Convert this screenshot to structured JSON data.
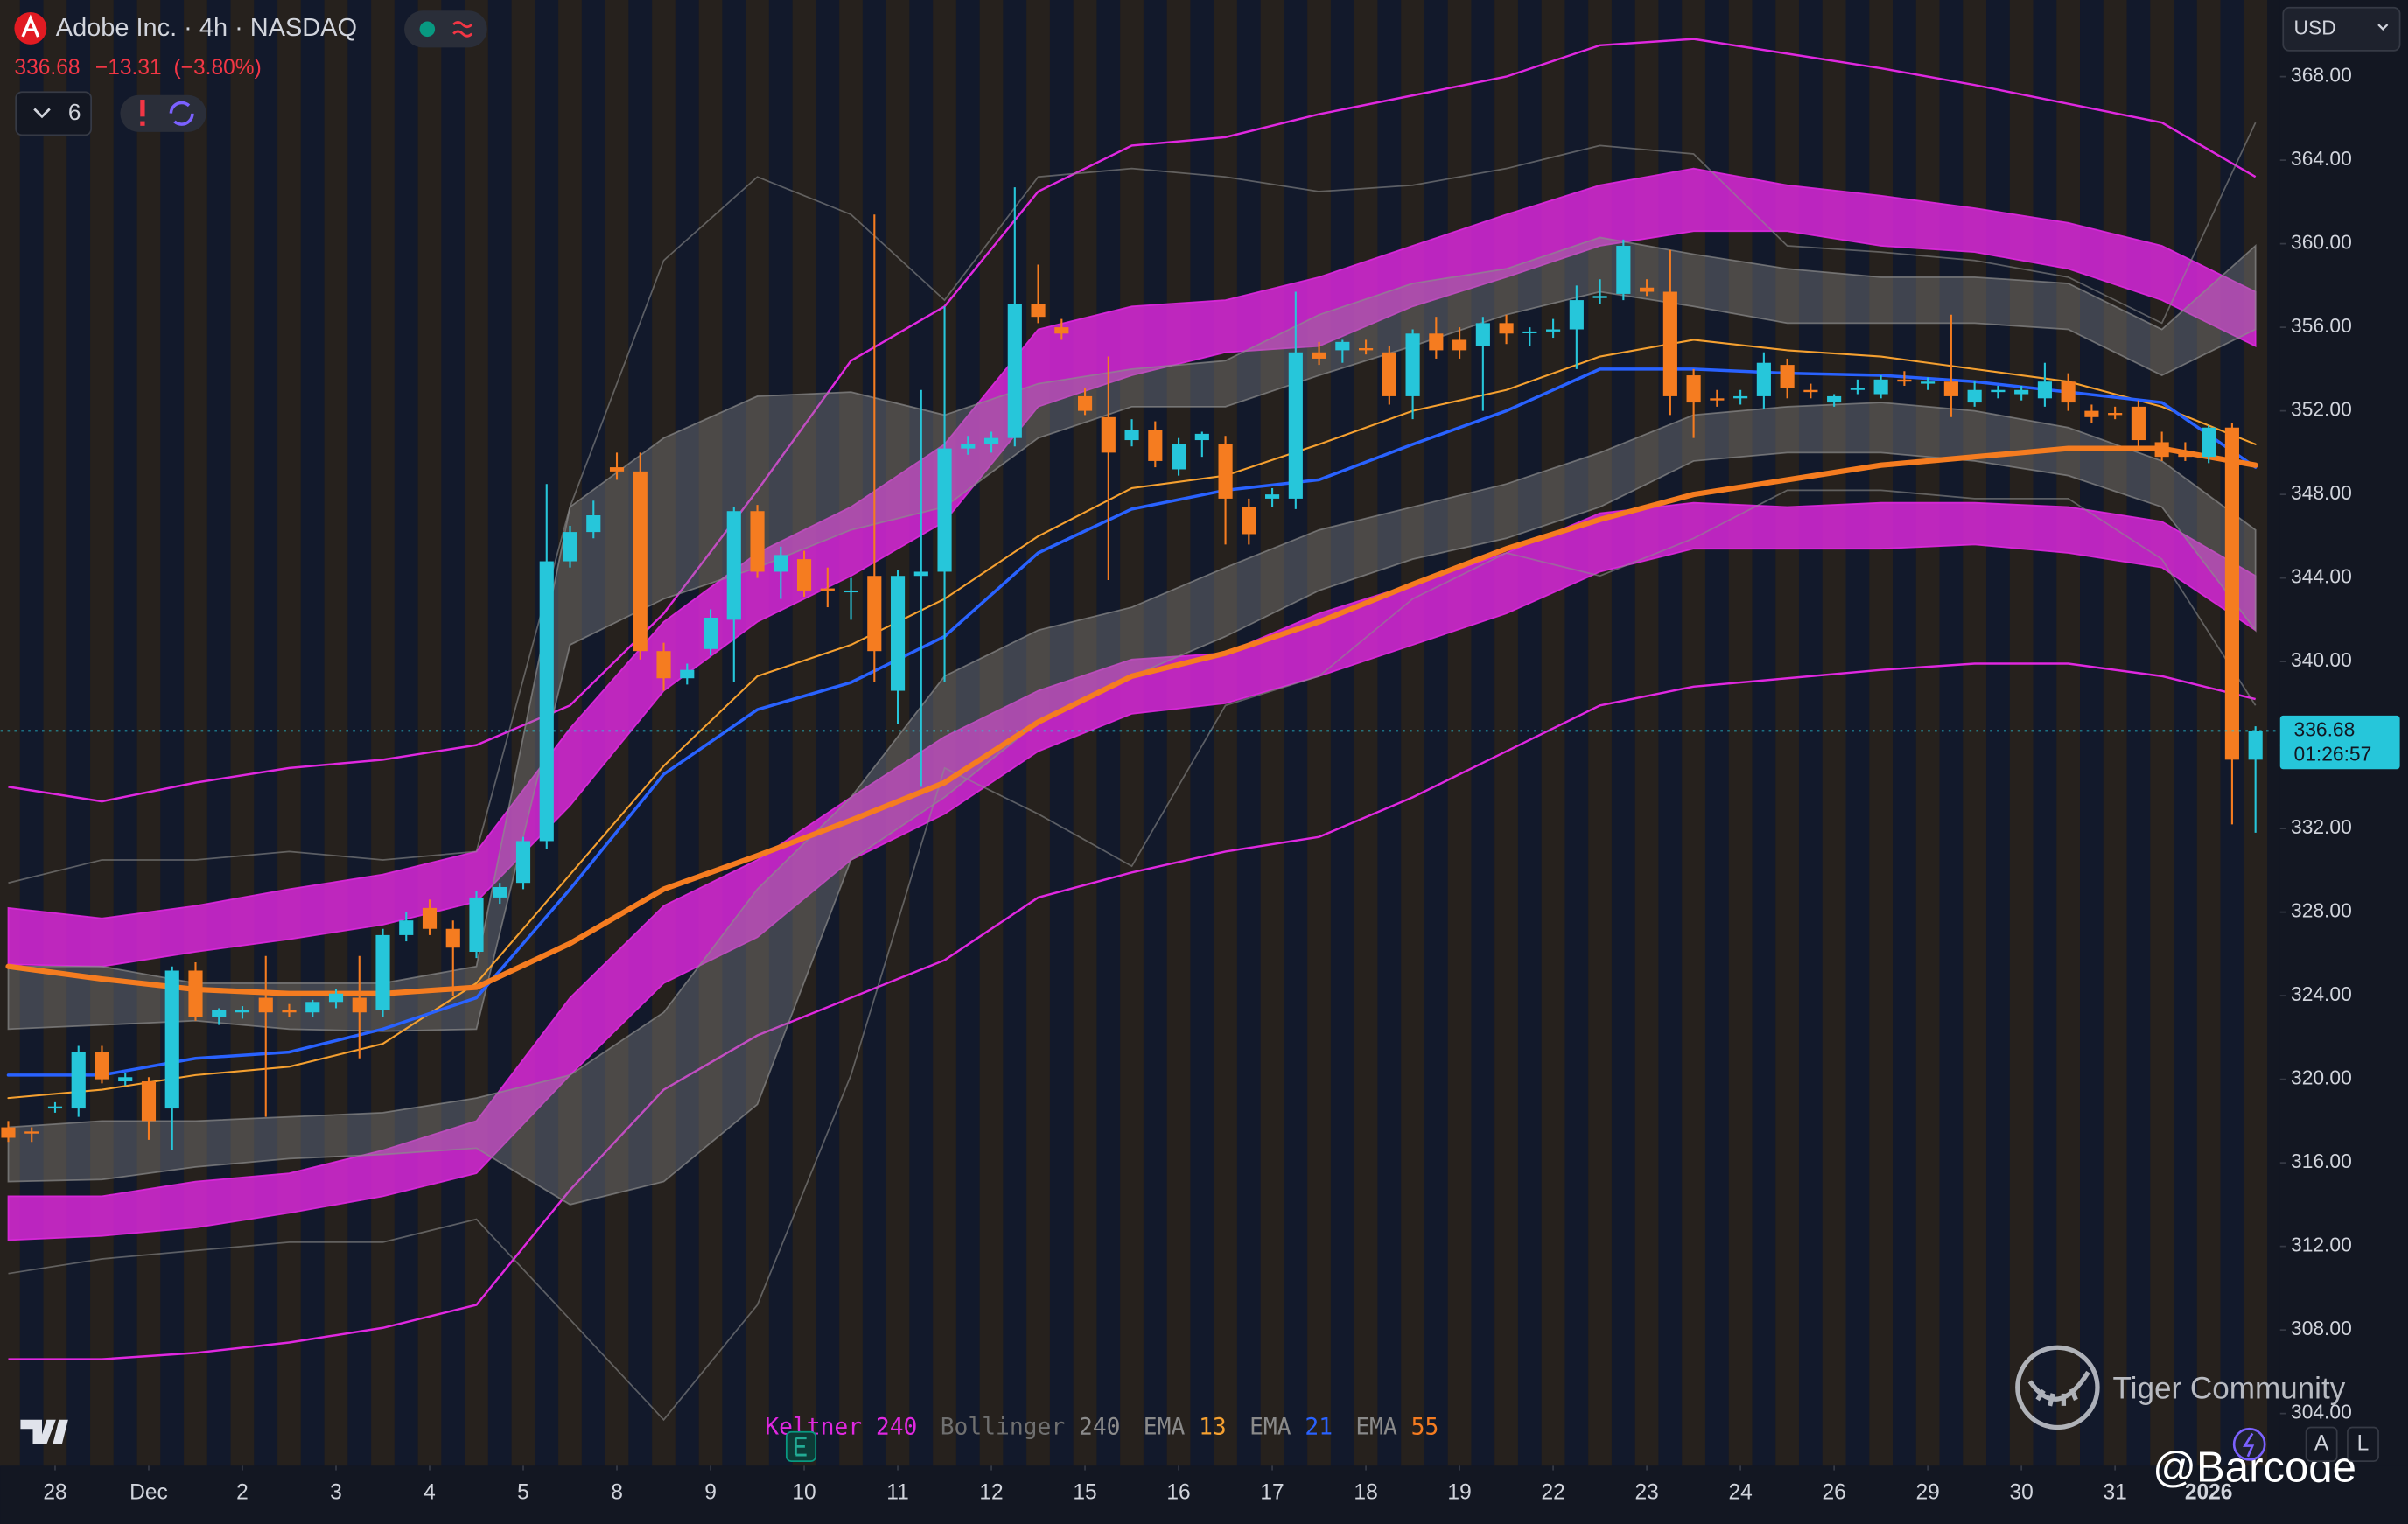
{
  "chart_data": {
    "type": "candlestick",
    "title": "Adobe Inc. · 4h · NASDAQ",
    "quote": {
      "last": "336.68",
      "change": "−13.31",
      "change_pct": "(−3.80%)"
    },
    "indicator_count": 6,
    "currency": "USD",
    "up_color": "#26c6da",
    "down_color": "#f57c20",
    "grid": false,
    "x": [
      0,
      1,
      2,
      3,
      4,
      5,
      6,
      7,
      8,
      9,
      10,
      11,
      12,
      13,
      14,
      15,
      16,
      17,
      18,
      19,
      20,
      21,
      22,
      23,
      24,
      25,
      26,
      27,
      28,
      29,
      30,
      31,
      32,
      33,
      34,
      35,
      36,
      37,
      38,
      39,
      40,
      41,
      42,
      43,
      44,
      45,
      46,
      47,
      48,
      49,
      50,
      51,
      52,
      53,
      54,
      55,
      56,
      57,
      58,
      59,
      60,
      61,
      62,
      63,
      64,
      65,
      66,
      67,
      68,
      69,
      70,
      71,
      72,
      73,
      74,
      75,
      76,
      77,
      78,
      79,
      80,
      81,
      82,
      83,
      84,
      85,
      86,
      87,
      88,
      89,
      90,
      91,
      92,
      93,
      94,
      95,
      96
    ],
    "open": [
      317.7,
      317.5,
      318.6,
      318.6,
      321.3,
      319.9,
      319.9,
      318.6,
      325.2,
      323.0,
      323.2,
      323.9,
      323.3,
      323.2,
      323.7,
      323.9,
      323.3,
      326.9,
      328.2,
      327.2,
      326.1,
      328.7,
      329.4,
      331.4,
      344.8,
      346.2,
      349.3,
      349.1,
      340.5,
      339.2,
      340.6,
      342.0,
      347.2,
      344.3,
      344.9,
      343.5,
      343.4,
      344.1,
      338.6,
      344.1,
      344.3,
      350.2,
      350.4,
      350.7,
      357.1,
      356.0,
      352.7,
      351.7,
      350.6,
      351.1,
      349.2,
      350.6,
      350.4,
      347.4,
      347.8,
      347.8,
      354.8,
      354.9,
      355.0,
      354.8,
      352.7,
      355.7,
      355.4,
      355.1,
      356.2,
      355.8,
      355.8,
      355.9,
      357.4,
      357.6,
      357.9,
      357.7,
      353.7,
      352.6,
      352.6,
      352.7,
      354.2,
      353.0,
      352.4,
      353.0,
      352.8,
      353.5,
      353.3,
      353.4,
      352.4,
      352.9,
      352.8,
      352.6,
      353.4,
      352.0,
      351.9,
      352.2,
      350.5,
      350.1,
      349.8,
      351.2,
      335.3
    ],
    "high": [
      318.0,
      317.7,
      318.9,
      321.6,
      321.6,
      320.3,
      320.1,
      325.4,
      325.6,
      323.4,
      323.5,
      325.9,
      323.6,
      323.8,
      324.3,
      325.9,
      327.2,
      328.0,
      328.6,
      327.6,
      329.0,
      329.4,
      331.6,
      348.5,
      346.5,
      347.7,
      350.0,
      350.0,
      340.9,
      339.9,
      342.5,
      347.4,
      347.5,
      345.5,
      345.3,
      344.5,
      344.0,
      361.4,
      344.4,
      353.0,
      357.0,
      350.8,
      351.0,
      362.7,
      359.0,
      356.4,
      353.1,
      354.6,
      351.6,
      351.5,
      350.7,
      351.0,
      350.8,
      347.8,
      348.3,
      357.7,
      355.3,
      355.4,
      355.4,
      355.1,
      355.9,
      356.5,
      356.0,
      356.5,
      356.6,
      356.0,
      356.4,
      358.0,
      358.3,
      360.2,
      358.3,
      359.7,
      354.0,
      353.0,
      353.0,
      354.8,
      354.5,
      353.3,
      352.8,
      353.5,
      353.7,
      353.9,
      353.6,
      356.6,
      353.4,
      353.2,
      353.2,
      354.3,
      353.8,
      352.3,
      352.2,
      352.5,
      351.0,
      350.5,
      351.3,
      351.4,
      336.9
    ],
    "low": [
      317.0,
      317.0,
      318.4,
      318.2,
      319.8,
      319.7,
      317.1,
      316.6,
      322.8,
      322.6,
      322.9,
      318.2,
      323.0,
      323.0,
      323.4,
      321.0,
      323.0,
      326.6,
      326.9,
      324.0,
      325.8,
      328.4,
      329.1,
      331.0,
      344.5,
      345.9,
      348.7,
      340.1,
      338.6,
      338.9,
      340.3,
      339.0,
      344.0,
      343.0,
      343.1,
      342.6,
      342.0,
      339.0,
      337.0,
      334.0,
      339.0,
      349.9,
      350.0,
      350.3,
      356.2,
      355.4,
      351.8,
      343.9,
      350.3,
      349.3,
      348.9,
      349.8,
      345.6,
      345.6,
      347.4,
      347.3,
      354.2,
      354.3,
      354.7,
      352.3,
      351.6,
      354.5,
      354.5,
      352.0,
      355.2,
      355.1,
      355.5,
      354.0,
      357.1,
      357.3,
      357.5,
      351.8,
      350.7,
      352.2,
      352.3,
      352.1,
      352.6,
      352.6,
      352.2,
      352.8,
      352.6,
      353.2,
      353.0,
      351.7,
      352.2,
      352.6,
      352.5,
      352.2,
      352.0,
      351.4,
      351.6,
      350.3,
      349.6,
      349.6,
      349.5,
      332.2,
      331.8
    ],
    "close": [
      317.2,
      317.4,
      318.7,
      321.3,
      320.0,
      320.1,
      318.0,
      325.2,
      323.0,
      323.3,
      323.3,
      323.2,
      323.2,
      323.7,
      324.1,
      323.2,
      326.9,
      327.6,
      327.2,
      326.3,
      328.7,
      329.2,
      331.4,
      344.8,
      346.2,
      347.0,
      349.1,
      340.5,
      339.2,
      339.6,
      342.1,
      347.2,
      344.3,
      345.1,
      343.4,
      343.4,
      343.4,
      340.5,
      344.1,
      344.3,
      350.2,
      350.4,
      350.7,
      357.1,
      356.5,
      355.7,
      352.0,
      350.0,
      351.1,
      349.6,
      350.4,
      350.9,
      347.8,
      346.1,
      348.0,
      354.8,
      354.5,
      355.3,
      354.9,
      352.7,
      355.7,
      354.9,
      354.9,
      356.2,
      355.7,
      355.8,
      355.9,
      357.3,
      357.5,
      359.9,
      357.7,
      352.7,
      352.4,
      352.5,
      352.7,
      354.3,
      353.1,
      352.9,
      352.7,
      353.1,
      353.5,
      353.4,
      353.4,
      352.7,
      353.0,
      353.0,
      353.0,
      353.4,
      352.4,
      351.7,
      351.8,
      350.6,
      349.8,
      349.8,
      351.2,
      335.3,
      336.68
    ],
    "xlim": [
      -0.33,
      97.05
    ],
    "xticks": [
      {
        "value": 2,
        "label": "28"
      },
      {
        "value": 6,
        "label": "Dec"
      },
      {
        "value": 10,
        "label": "2"
      },
      {
        "value": 14,
        "label": "3"
      },
      {
        "value": 18,
        "label": "4"
      },
      {
        "value": 22,
        "label": "5"
      },
      {
        "value": 26,
        "label": "8"
      },
      {
        "value": 30,
        "label": "9"
      },
      {
        "value": 34,
        "label": "10"
      },
      {
        "value": 38,
        "label": "11"
      },
      {
        "value": 42,
        "label": "12"
      },
      {
        "value": 46,
        "label": "15"
      },
      {
        "value": 50,
        "label": "16"
      },
      {
        "value": 54,
        "label": "17"
      },
      {
        "value": 58,
        "label": "18"
      },
      {
        "value": 62,
        "label": "19"
      },
      {
        "value": 66,
        "label": "22"
      },
      {
        "value": 70,
        "label": "23"
      },
      {
        "value": 74,
        "label": "24"
      },
      {
        "value": 78,
        "label": "26"
      },
      {
        "value": 82,
        "label": "29"
      },
      {
        "value": 86,
        "label": "30"
      },
      {
        "value": 90,
        "label": "31"
      },
      {
        "value": 94,
        "label": "2026"
      }
    ],
    "ylim": [
      301.5,
      371.67
    ],
    "yticks": [
      {
        "value": 304,
        "label": "304.00"
      },
      {
        "value": 308,
        "label": "308.00"
      },
      {
        "value": 312,
        "label": "312.00"
      },
      {
        "value": 316,
        "label": "316.00"
      },
      {
        "value": 320,
        "label": "320.00"
      },
      {
        "value": 324,
        "label": "324.00"
      },
      {
        "value": 328,
        "label": "328.00"
      },
      {
        "value": 332,
        "label": "332.00"
      },
      {
        "value": 336,
        "label": "336.00"
      },
      {
        "value": 340,
        "label": "340.00"
      },
      {
        "value": 344,
        "label": "344.00"
      },
      {
        "value": 348,
        "label": "348.00"
      },
      {
        "value": 352,
        "label": "352.00"
      },
      {
        "value": 356,
        "label": "356.00"
      },
      {
        "value": 360,
        "label": "360.00"
      },
      {
        "value": 364,
        "label": "364.00"
      },
      {
        "value": 368,
        "label": "368.00"
      }
    ],
    "last_price": {
      "value": 336.68,
      "label": "336.68",
      "countdown": "01:26:57"
    },
    "sample_x": [
      0,
      4,
      8,
      12,
      16,
      20,
      24,
      28,
      32,
      36,
      40,
      44,
      48,
      52,
      56,
      60,
      64,
      68,
      72,
      76,
      80,
      84,
      88,
      92,
      96
    ],
    "indicators": [
      {
        "name": "Keltner",
        "length": 240,
        "color": "#e028e0",
        "name_color": "#e028e0",
        "lines": [
          [
            334.0,
            333.3,
            334.2,
            334.9,
            335.3,
            336.0,
            337.9,
            342.3,
            348.2,
            354.4,
            357.0,
            362.5,
            364.7,
            365.1,
            366.2,
            367.1,
            368.0,
            369.5,
            369.8,
            369.1,
            368.4,
            367.6,
            366.7,
            365.8,
            363.2
          ],
          [
            306.6,
            306.6,
            306.9,
            307.4,
            308.1,
            309.2,
            314.7,
            319.5,
            322.1,
            323.9,
            325.7,
            328.7,
            329.9,
            330.9,
            331.6,
            333.5,
            335.7,
            337.9,
            338.8,
            339.2,
            339.6,
            339.9,
            339.9,
            339.3,
            338.2
          ]
        ],
        "bands": [
          {
            "upper": [
              328.2,
              327.7,
              328.3,
              329.1,
              329.8,
              330.9,
              336.8,
              341.9,
              345.2,
              347.4,
              350.4,
              355.9,
              357.0,
              357.3,
              358.4,
              359.9,
              361.4,
              362.8,
              363.6,
              362.8,
              362.3,
              361.7,
              361.0,
              359.9,
              357.7
            ],
            "lower": [
              325.5,
              325.4,
              326.1,
              326.7,
              327.4,
              328.5,
              333.1,
              338.6,
              341.9,
              344.1,
              346.7,
              352.2,
              353.7,
              354.8,
              355.1,
              357.0,
              358.4,
              359.9,
              360.6,
              360.6,
              359.9,
              359.6,
              358.8,
              357.3,
              355.1
            ]
          },
          {
            "upper": [
              314.4,
              314.4,
              315.1,
              315.5,
              316.6,
              318.0,
              323.9,
              328.3,
              330.5,
              333.5,
              336.4,
              338.6,
              340.1,
              340.4,
              342.3,
              343.7,
              345.2,
              347.1,
              347.6,
              347.4,
              347.6,
              347.6,
              347.4,
              346.7,
              344.1
            ],
            "lower": [
              312.3,
              312.5,
              312.9,
              313.6,
              314.4,
              315.5,
              320.2,
              324.6,
              326.8,
              330.5,
              332.7,
              335.7,
              337.5,
              338.0,
              339.3,
              340.8,
              342.3,
              344.3,
              345.4,
              345.4,
              345.4,
              345.6,
              345.2,
              344.5,
              341.5
            ]
          }
        ]
      },
      {
        "name": "Bollinger",
        "length": 240,
        "color": "#8c8c8c",
        "name_color": "#6f6f6f",
        "lines": [
          [
            329.4,
            330.5,
            330.5,
            330.9,
            330.5,
            330.9,
            347.4,
            359.2,
            363.2,
            361.4,
            357.3,
            363.2,
            363.6,
            363.2,
            362.5,
            362.8,
            363.6,
            364.7,
            364.3,
            359.9,
            359.6,
            359.2,
            358.4,
            356.2,
            365.8
          ],
          [
            310.7,
            311.4,
            311.8,
            312.2,
            312.2,
            313.3,
            308.5,
            303.7,
            309.2,
            320.2,
            334.9,
            332.7,
            330.2,
            337.9,
            339.3,
            343.0,
            345.2,
            344.1,
            345.9,
            348.2,
            348.2,
            347.8,
            347.8,
            344.9,
            337.9
          ]
        ],
        "bands": [
          {
            "upper": [
              325.4,
              325.4,
              324.6,
              324.6,
              324.6,
              325.4,
              347.4,
              350.7,
              352.7,
              352.9,
              351.8,
              353.3,
              354.0,
              354.4,
              356.6,
              358.1,
              358.8,
              360.3,
              359.5,
              358.8,
              358.4,
              358.4,
              358.1,
              355.9,
              359.9
            ],
            "lower": [
              322.4,
              322.6,
              322.8,
              322.4,
              322.3,
              322.4,
              340.8,
              343.0,
              344.5,
              346.3,
              347.4,
              350.7,
              352.2,
              352.2,
              353.7,
              355.1,
              356.6,
              357.7,
              357.0,
              356.2,
              356.2,
              356.2,
              355.9,
              353.7,
              355.9
            ]
          },
          {
            "upper": [
              317.7,
              318.0,
              318.0,
              318.2,
              318.4,
              319.1,
              320.2,
              323.2,
              329.1,
              333.5,
              339.3,
              341.5,
              342.6,
              344.5,
              346.3,
              347.4,
              348.5,
              350.0,
              351.8,
              352.2,
              352.4,
              352.0,
              351.2,
              349.6,
              346.3
            ],
            "lower": [
              315.1,
              315.2,
              315.8,
              316.2,
              316.4,
              316.7,
              314.0,
              315.1,
              318.8,
              330.5,
              333.5,
              337.1,
              339.3,
              341.2,
              343.4,
              344.9,
              345.9,
              347.4,
              349.6,
              350.0,
              350.0,
              349.6,
              348.9,
              347.4,
              341.5
            ]
          }
        ]
      },
      {
        "name": "EMA",
        "length": 13,
        "color": "#f5a030",
        "name_color": "#8a8a8a",
        "width": 1.2,
        "values": [
          319.1,
          319.5,
          320.2,
          320.6,
          321.7,
          324.6,
          329.8,
          335.0,
          339.3,
          340.8,
          343.0,
          346.0,
          348.3,
          348.9,
          350.4,
          352.0,
          353.0,
          354.6,
          355.4,
          354.9,
          354.6,
          354.0,
          353.4,
          352.2,
          350.4
        ]
      },
      {
        "name": "EMA",
        "length": 21,
        "color": "#2962ff",
        "name_color": "#8a8a8a",
        "width": 2,
        "values": [
          320.2,
          320.2,
          321.0,
          321.3,
          322.4,
          323.9,
          329.1,
          334.6,
          337.7,
          339.0,
          341.2,
          345.2,
          347.3,
          348.2,
          348.7,
          350.4,
          352.0,
          354.0,
          354.0,
          353.8,
          353.7,
          353.4,
          352.9,
          352.4,
          349.3
        ]
      },
      {
        "name": "EMA",
        "length": 55,
        "color": "#f57c20",
        "name_color": "#8a8a8a",
        "width": 3.5,
        "values": [
          325.4,
          324.8,
          324.3,
          324.1,
          324.1,
          324.4,
          326.5,
          329.1,
          330.7,
          332.4,
          334.2,
          337.1,
          339.3,
          340.4,
          341.9,
          343.7,
          345.4,
          346.8,
          348.0,
          348.7,
          349.4,
          349.8,
          350.2,
          350.2,
          349.4
        ]
      }
    ],
    "watermark": "Tiger Community",
    "author": "@Barcode",
    "scale_buttons": [
      "A",
      "L"
    ]
  }
}
